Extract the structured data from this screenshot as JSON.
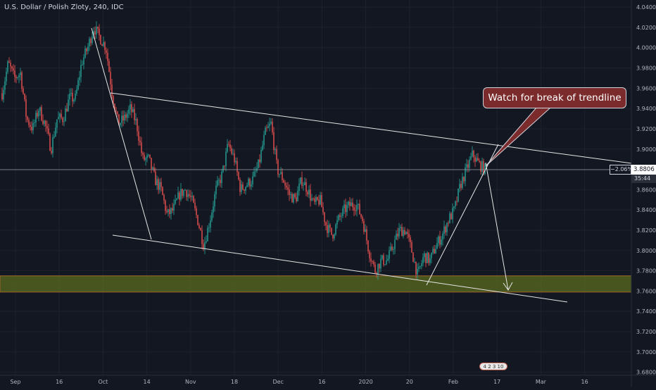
{
  "chart_data": {
    "type": "candlestick",
    "title": "U.S. Dollar / Polish Zloty, 240, IDC",
    "x_tick_labels": [
      "Sep",
      "16",
      "Oct",
      "14",
      "Nov",
      "18",
      "Dec",
      "16",
      "2020",
      "20",
      "Feb",
      "17",
      "Mar",
      "16"
    ],
    "y_ticks": [
      3.68,
      3.7,
      3.72,
      3.74,
      3.76,
      3.78,
      3.8,
      3.82,
      3.84,
      3.86,
      3.88,
      3.9,
      3.92,
      3.94,
      3.96,
      3.98,
      4.0,
      4.02,
      4.04
    ],
    "ylim": [
      3.677,
      4.047
    ],
    "price_path": [
      [
        3.955,
        3.985
      ],
      [
        3.97,
        3.975
      ],
      [
        3.93,
        3.92
      ],
      [
        3.94,
        3.925
      ],
      [
        3.9,
        3.93
      ],
      [
        3.93,
        3.95
      ],
      [
        3.95,
        3.985
      ],
      [
        4.0,
        4.02
      ],
      [
        4.01,
        4.0
      ],
      [
        3.955,
        3.925
      ],
      [
        3.93,
        3.94
      ],
      [
        3.925,
        3.89
      ],
      [
        3.89,
        3.87
      ],
      [
        3.86,
        3.835
      ],
      [
        3.84,
        3.855
      ],
      [
        3.86,
        3.85
      ],
      [
        3.83,
        3.805
      ],
      [
        3.83,
        3.86
      ],
      [
        3.875,
        3.905
      ],
      [
        3.89,
        3.86
      ],
      [
        3.865,
        3.87
      ],
      [
        3.885,
        3.915
      ],
      [
        3.925,
        3.88
      ],
      [
        3.87,
        3.855
      ],
      [
        3.85,
        3.87
      ],
      [
        3.86,
        3.845
      ],
      [
        3.85,
        3.825
      ],
      [
        3.815,
        3.83
      ],
      [
        3.84,
        3.845
      ],
      [
        3.845,
        3.83
      ],
      [
        3.8,
        3.78
      ],
      [
        3.79,
        3.79
      ],
      [
        3.805,
        3.82
      ],
      [
        3.82,
        3.8
      ],
      [
        3.775,
        3.795
      ],
      [
        3.79,
        3.805
      ],
      [
        3.815,
        3.83
      ],
      [
        3.84,
        3.865
      ],
      [
        3.88,
        3.895
      ],
      [
        3.885,
        3.88
      ]
    ],
    "support_zone": [
      3.759,
      3.775
    ],
    "current_price": "3.8806",
    "change_label": "−2.06%",
    "countdown": "35:44",
    "annotation": "Watch for break of trendline",
    "badge": "4 2 3 10"
  },
  "colors": {
    "background": "#131722",
    "up": "#26a69a",
    "down": "#ef5350",
    "grid": "#1e222d",
    "zone": "#5b6b1f",
    "zone_border": "#9a6a2a",
    "text": "#b2b5be",
    "callout": "#7b2b2b"
  }
}
